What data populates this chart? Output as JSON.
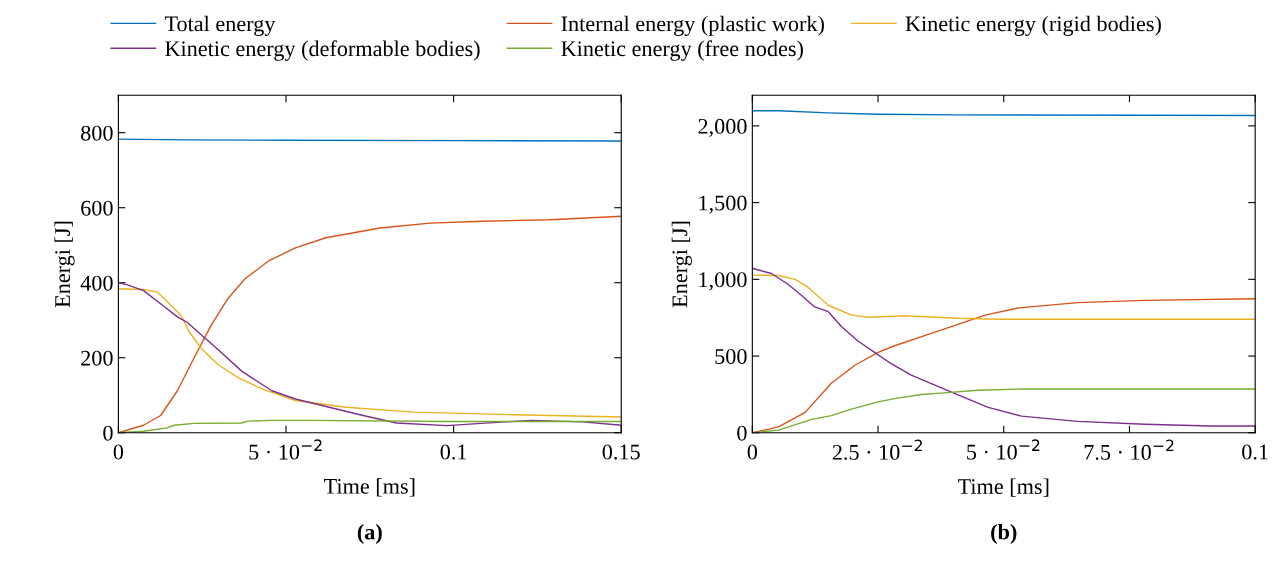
{
  "chart_data": [
    {
      "type": "line",
      "xlabel": "Time [ms]",
      "ylabel": "Energi [J]",
      "annotations": [
        "(a)"
      ],
      "legend": "top",
      "grid": false,
      "xlim": [
        0,
        0.15
      ],
      "ylim": [
        0,
        900
      ],
      "xticks": [
        0,
        {
          "value": 0.05,
          "label": "5 · 10$^{−2}$"
        },
        0.1,
        0.15
      ],
      "yticks": [
        0,
        200,
        400,
        600,
        800
      ],
      "series": [
        {
          "name": "Total energy",
          "color": "#0072bd",
          "x": [
            0,
            0.02,
            0.05,
            0.1,
            0.15
          ],
          "values": [
            783,
            781,
            780,
            779,
            778
          ]
        },
        {
          "name": "Internal energy (plastic work)",
          "color": "#d95319",
          "x": [
            0,
            0.0075,
            0.0126,
            0.0176,
            0.0226,
            0.0277,
            0.0327,
            0.0377,
            0.0448,
            0.0528,
            0.0619,
            0.078,
            0.093,
            0.1085,
            0.1286,
            0.15
          ],
          "values": [
            0,
            20,
            46,
            112,
            200,
            287,
            358,
            410,
            458,
            493,
            520,
            546,
            559,
            564,
            568,
            577
          ]
        },
        {
          "name": "Kinetic energy (rigid bodies)",
          "color": "#edb120",
          "x": [
            0,
            0.0075,
            0.0116,
            0.0146,
            0.0186,
            0.0211,
            0.0246,
            0.0297,
            0.0357,
            0.0428,
            0.0528,
            0.0679,
            0.088,
            0.1182,
            0.15
          ],
          "values": [
            384,
            382,
            375,
            349,
            314,
            270,
            226,
            182,
            147,
            117,
            86,
            68,
            55,
            48,
            42
          ]
        },
        {
          "name": "Kinetic energy (deformable bodies)",
          "color": "#7e2f8e",
          "x": [
            0,
            0.0025,
            0.0075,
            0.0126,
            0.0176,
            0.0206,
            0.0236,
            0.0297,
            0.0367,
            0.0397,
            0.0458,
            0.0528,
            0.0629,
            0.073,
            0.083,
            0.0981,
            0.1081,
            0.1233,
            0.1384,
            0.15
          ],
          "values": [
            400,
            395,
            379,
            344,
            309,
            294,
            270,
            222,
            165,
            147,
            112,
            90,
            68,
            46,
            26,
            19,
            25,
            33,
            29,
            20
          ]
        },
        {
          "name": "Kinetic energy (free nodes)",
          "color": "#77ac30",
          "x": [
            0,
            0.0075,
            0.0146,
            0.0166,
            0.0226,
            0.0367,
            0.0387,
            0.0458,
            0.0579,
            0.0981,
            0.15
          ],
          "values": [
            0,
            4,
            13,
            20,
            25,
            26,
            31,
            33,
            33,
            30,
            30
          ]
        }
      ]
    },
    {
      "type": "line",
      "xlabel": "Time [ms]",
      "ylabel": "Energi [J]",
      "annotations": [
        "(b)"
      ],
      "legend": "top",
      "grid": false,
      "xlim": [
        0,
        0.1
      ],
      "ylim": [
        0,
        2200
      ],
      "xticks": [
        0,
        {
          "value": 0.025,
          "label": "2.5 · 10$^{−2}$"
        },
        {
          "value": 0.05,
          "label": "5 · 10$^{−2}$"
        },
        {
          "value": 0.075,
          "label": "7.5 · 10$^{−2}$"
        },
        0.1
      ],
      "yticks": [
        0,
        500,
        {
          "value": 1000,
          "label": "1,000"
        },
        {
          "value": 1500,
          "label": "1,500"
        },
        {
          "value": 2000,
          "label": "2,000"
        }
      ],
      "series": [
        {
          "name": "Total energy",
          "color": "#0072bd",
          "x": [
            0,
            0.0052,
            0.0151,
            0.025,
            0.041,
            0.1
          ],
          "values": [
            2099,
            2099,
            2085,
            2076,
            2072,
            2068
          ]
        },
        {
          "name": "Internal energy (plastic work)",
          "color": "#d95319",
          "x": [
            0,
            0.0052,
            0.0105,
            0.0157,
            0.0204,
            0.025,
            0.0283,
            0.035,
            0.0416,
            0.0463,
            0.053,
            0.0647,
            0.078,
            0.1
          ],
          "values": [
            0,
            38,
            133,
            323,
            440,
            524,
            567,
            641,
            715,
            767,
            814,
            848,
            863,
            873
          ]
        },
        {
          "name": "Kinetic energy (rigid bodies)",
          "color": "#edb120",
          "x": [
            0,
            0.0052,
            0.0085,
            0.0111,
            0.0151,
            0.0197,
            0.023,
            0.0303,
            0.041,
            0.049,
            0.1
          ],
          "values": [
            1027,
            1025,
            1000,
            947,
            831,
            767,
            753,
            763,
            746,
            740,
            740
          ]
        },
        {
          "name": "Kinetic energy (deformable bodies)",
          "color": "#7e2f8e",
          "x": [
            0,
            0.0038,
            0.0071,
            0.0098,
            0.0124,
            0.0151,
            0.0177,
            0.021,
            0.0243,
            0.0276,
            0.0316,
            0.0369,
            0.0415,
            0.0469,
            0.0535,
            0.0647,
            0.078,
            0.0911,
            0.1
          ],
          "values": [
            1072,
            1038,
            968,
            894,
            820,
            789,
            693,
            598,
            524,
            450,
            376,
            302,
            239,
            165,
            108,
            74,
            55,
            44,
            44
          ]
        },
        {
          "name": "Kinetic energy (free nodes)",
          "color": "#77ac30",
          "x": [
            0,
            0.0052,
            0.0118,
            0.0157,
            0.0197,
            0.025,
            0.0283,
            0.0336,
            0.0382,
            0.0449,
            0.0535,
            0.1
          ],
          "values": [
            0,
            17,
            87,
            112,
            154,
            201,
            222,
            249,
            260,
            277,
            285,
            285
          ]
        }
      ]
    }
  ]
}
